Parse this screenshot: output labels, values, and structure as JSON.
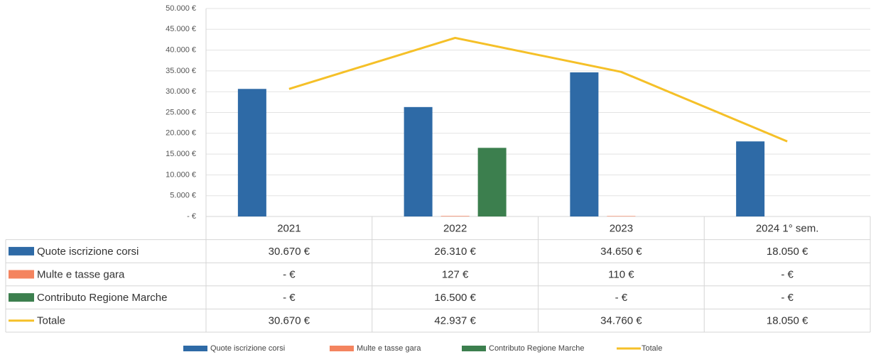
{
  "chart_data": {
    "type": "bar",
    "categories": [
      "2021",
      "2022",
      "2023",
      "2024 1° sem."
    ],
    "series": [
      {
        "name": "Quote iscrizione corsi",
        "color": "#2e6aa6",
        "type": "bar",
        "values": [
          30670,
          26310,
          34650,
          18050
        ],
        "value_labels": [
          "30.670 €",
          "26.310 €",
          "34.650 €",
          "18.050 €"
        ]
      },
      {
        "name": "Multe e tasse gara",
        "color": "#f4845f",
        "type": "bar",
        "values": [
          0,
          127,
          110,
          0
        ],
        "value_labels": [
          "- €",
          "127 €",
          "110 €",
          "- €"
        ]
      },
      {
        "name": "Contributo Regione Marche",
        "color": "#3c7f4e",
        "type": "bar",
        "values": [
          0,
          16500,
          0,
          0
        ],
        "value_labels": [
          "- €",
          "16.500 €",
          "- €",
          "- €"
        ]
      },
      {
        "name": "Totale",
        "color": "#f5c028",
        "type": "line",
        "values": [
          30670,
          42937,
          34760,
          18050
        ],
        "value_labels": [
          "30.670 €",
          "42.937 €",
          "34.760 €",
          "18.050 €"
        ]
      }
    ],
    "ylim": [
      0,
      50000
    ],
    "yticks": [
      {
        "value": 0,
        "label": "- €"
      },
      {
        "value": 5000,
        "label": "5.000 €"
      },
      {
        "value": 10000,
        "label": "10.000 €"
      },
      {
        "value": 15000,
        "label": "15.000 €"
      },
      {
        "value": 20000,
        "label": "20.000 €"
      },
      {
        "value": 25000,
        "label": "25.000 €"
      },
      {
        "value": 30000,
        "label": "30.000 €"
      },
      {
        "value": 35000,
        "label": "35.000 €"
      },
      {
        "value": 40000,
        "label": "40.000 €"
      },
      {
        "value": 45000,
        "label": "45.000 €"
      },
      {
        "value": 50000,
        "label": "50.000 €"
      }
    ],
    "grid": true,
    "legend": "bottom"
  }
}
